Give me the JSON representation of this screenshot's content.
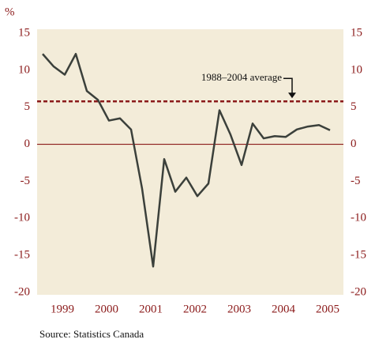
{
  "chart_data": {
    "type": "line",
    "y_label": "%",
    "source": "Source: Statistics Canada",
    "categories": [
      null,
      null,
      null,
      null,
      null,
      null,
      null,
      null,
      null,
      null,
      null,
      null,
      null,
      null,
      null,
      null,
      null,
      null,
      null,
      null,
      null,
      null,
      null,
      null,
      null,
      null,
      null
    ],
    "year_labels": [
      "1999",
      "2000",
      "2001",
      "2002",
      "2003",
      "2004",
      "2005"
    ],
    "series": [
      {
        "color": "#3b403b",
        "values": [
          12.2,
          10.5,
          9.4,
          12.2,
          7.2,
          6.0,
          3.2,
          3.5,
          2.0,
          -6.0,
          -16.5,
          -2.0,
          -6.4,
          -4.5,
          -7.0,
          -5.3,
          4.6,
          1.3,
          -2.8,
          2.8,
          0.8,
          1.1,
          1.0,
          2.0,
          2.4,
          2.6,
          1.9
        ]
      }
    ],
    "ylim": [
      -20,
      15
    ],
    "yticks": [
      15,
      10,
      5,
      0,
      -5,
      -10,
      -15,
      -20
    ],
    "y2lim": [
      -20,
      15
    ],
    "y2ticks": [
      15,
      10,
      5,
      0,
      -5,
      -10,
      -15,
      -20
    ],
    "average": {
      "label": "1988–2004 average",
      "value": 5.8,
      "color": "#8b1a1a"
    },
    "zero_line_color": "#8b1a1a",
    "background": "#f3ecd9"
  }
}
